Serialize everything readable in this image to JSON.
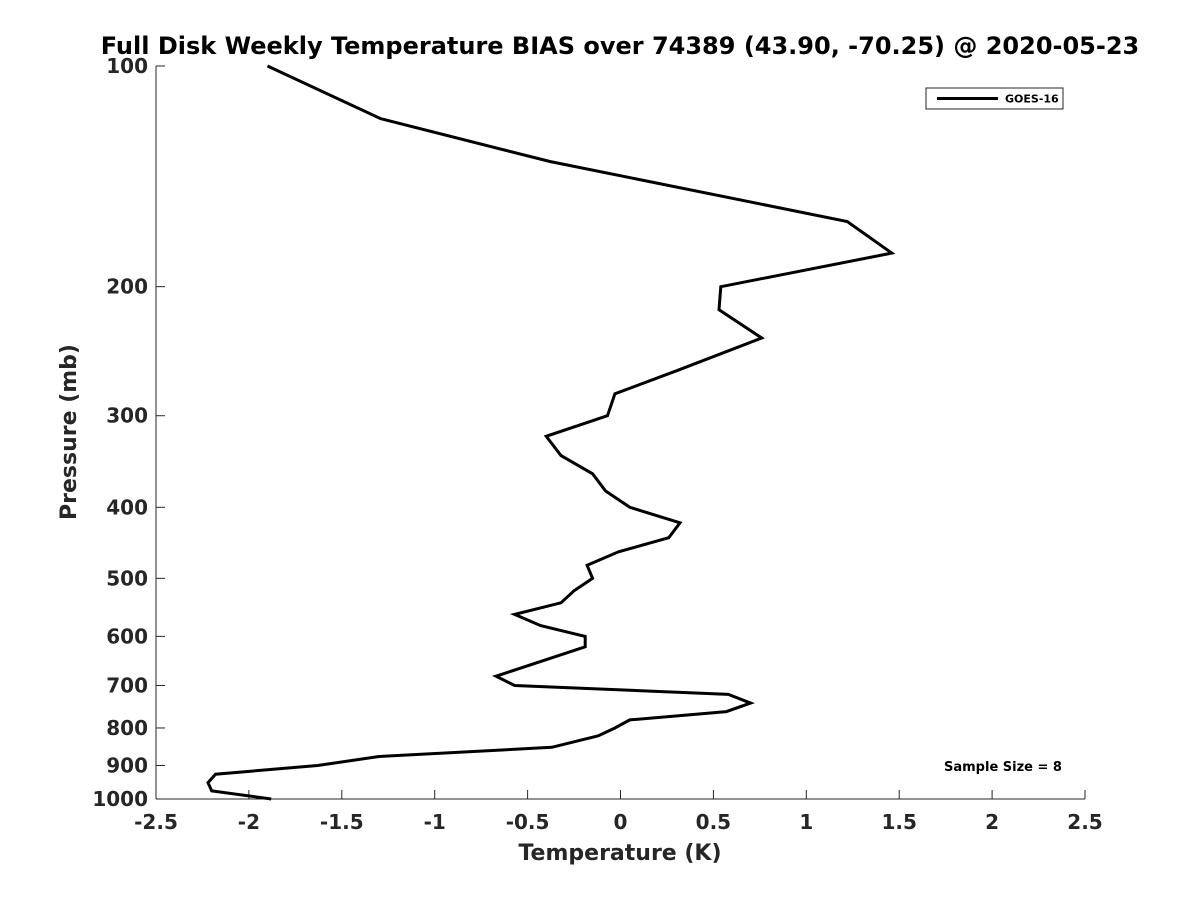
{
  "chart_data": {
    "type": "line",
    "title": "Full Disk Weekly Temperature BIAS over 74389 (43.90, -70.25) @ 2020-05-23",
    "xlabel": "Temperature (K)",
    "ylabel": "Pressure (mb)",
    "xlim": [
      -2.5,
      2.5
    ],
    "ylim": [
      1000,
      100
    ],
    "y_scale": "log",
    "y_reversed": true,
    "x_ticks": [
      "-2.5",
      "-2",
      "-1.5",
      "-1",
      "-0.5",
      "0",
      "0.5",
      "1",
      "1.5",
      "2",
      "2.5"
    ],
    "x_tick_values": [
      -2.5,
      -2,
      -1.5,
      -1,
      -0.5,
      0,
      0.5,
      1,
      1.5,
      2,
      2.5
    ],
    "y_ticks": [
      "100",
      "200",
      "300",
      "400",
      "500",
      "600",
      "700",
      "800",
      "900",
      "1000"
    ],
    "y_tick_values": [
      100,
      200,
      300,
      400,
      500,
      600,
      700,
      800,
      900,
      1000
    ],
    "grid": false,
    "legend_position": "top-right",
    "series": [
      {
        "name": "GOES-16",
        "color": "#000000",
        "points": [
          {
            "t": -1.9,
            "p": 100
          },
          {
            "t": -1.29,
            "p": 118
          },
          {
            "t": -0.38,
            "p": 135
          },
          {
            "t": 1.22,
            "p": 163
          },
          {
            "t": 1.46,
            "p": 180
          },
          {
            "t": 0.54,
            "p": 200
          },
          {
            "t": 0.53,
            "p": 215
          },
          {
            "t": 0.76,
            "p": 235
          },
          {
            "t": 0.31,
            "p": 260
          },
          {
            "t": -0.03,
            "p": 280
          },
          {
            "t": -0.07,
            "p": 300
          },
          {
            "t": -0.4,
            "p": 320
          },
          {
            "t": -0.32,
            "p": 340
          },
          {
            "t": -0.15,
            "p": 360
          },
          {
            "t": -0.08,
            "p": 380
          },
          {
            "t": 0.05,
            "p": 400
          },
          {
            "t": 0.32,
            "p": 420
          },
          {
            "t": 0.26,
            "p": 440
          },
          {
            "t": -0.01,
            "p": 460
          },
          {
            "t": -0.18,
            "p": 480
          },
          {
            "t": -0.15,
            "p": 500
          },
          {
            "t": -0.25,
            "p": 520
          },
          {
            "t": -0.32,
            "p": 540
          },
          {
            "t": -0.57,
            "p": 560
          },
          {
            "t": -0.43,
            "p": 580
          },
          {
            "t": -0.19,
            "p": 600
          },
          {
            "t": -0.19,
            "p": 620
          },
          {
            "t": -0.67,
            "p": 680
          },
          {
            "t": -0.57,
            "p": 700
          },
          {
            "t": 0.58,
            "p": 720
          },
          {
            "t": 0.7,
            "p": 740
          },
          {
            "t": 0.57,
            "p": 760
          },
          {
            "t": 0.05,
            "p": 780
          },
          {
            "t": -0.03,
            "p": 800
          },
          {
            "t": -0.12,
            "p": 820
          },
          {
            "t": -0.37,
            "p": 850
          },
          {
            "t": -1.3,
            "p": 875
          },
          {
            "t": -1.63,
            "p": 900
          },
          {
            "t": -2.18,
            "p": 925
          },
          {
            "t": -2.22,
            "p": 950
          },
          {
            "t": -2.2,
            "p": 975
          },
          {
            "t": -1.88,
            "p": 1000
          }
        ]
      }
    ],
    "annotations": [
      "Sample Size = 8"
    ]
  }
}
